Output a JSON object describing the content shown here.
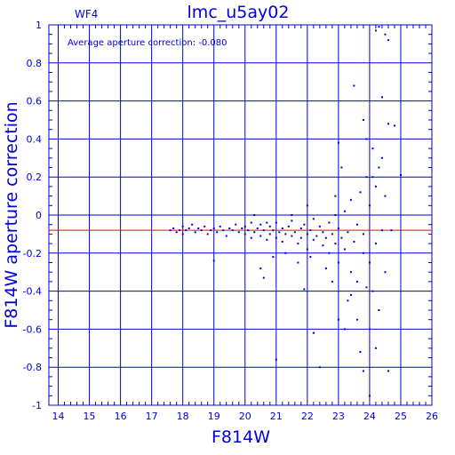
{
  "chart_data": {
    "type": "scatter",
    "title": "lmc_u5ay02",
    "panel_label": "WF4",
    "annotation": "Average aperture correction:  -0.080",
    "xlabel": "F814W",
    "ylabel": "F814W aperture correction",
    "xlim": [
      13.7,
      26.0
    ],
    "ylim": [
      -1.0,
      1.0
    ],
    "xticks": [
      "14",
      "15",
      "16",
      "17",
      "18",
      "19",
      "20",
      "21",
      "22",
      "23",
      "24",
      "25",
      "26"
    ],
    "yticks": [
      "1",
      "0.8",
      "0.6",
      "0.4",
      "0.2",
      "0",
      "-0.2",
      "-0.4",
      "-0.6",
      "-0.8",
      "-1"
    ],
    "grid": true,
    "reference_line": {
      "y": -0.08,
      "color": "#ff0000"
    },
    "colors": {
      "axes": "#0000dd",
      "points": "#0000dd",
      "reference": "#ff0000"
    },
    "series": [
      {
        "points": [
          [
            17.6,
            -0.08
          ],
          [
            17.7,
            -0.07
          ],
          [
            17.8,
            -0.09
          ],
          [
            17.9,
            -0.08
          ],
          [
            18.0,
            -0.06
          ],
          [
            18.0,
            -0.1
          ],
          [
            18.1,
            -0.08
          ],
          [
            18.2,
            -0.07
          ],
          [
            18.3,
            -0.05
          ],
          [
            18.4,
            -0.09
          ],
          [
            18.5,
            -0.07
          ],
          [
            18.6,
            -0.08
          ],
          [
            18.7,
            -0.06
          ],
          [
            18.8,
            -0.1
          ],
          [
            18.9,
            -0.08
          ],
          [
            19.0,
            -0.07
          ],
          [
            19.1,
            -0.09
          ],
          [
            19.2,
            -0.06
          ],
          [
            19.3,
            -0.08
          ],
          [
            19.4,
            -0.11
          ],
          [
            19.5,
            -0.07
          ],
          [
            19.6,
            -0.08
          ],
          [
            19.7,
            -0.05
          ],
          [
            19.8,
            -0.09
          ],
          [
            19.9,
            -0.07
          ],
          [
            20.0,
            -0.1
          ],
          [
            20.0,
            -0.06
          ],
          [
            20.1,
            -0.08
          ],
          [
            20.2,
            -0.12
          ],
          [
            20.2,
            -0.04
          ],
          [
            20.3,
            -0.09
          ],
          [
            20.4,
            -0.07
          ],
          [
            20.5,
            -0.11
          ],
          [
            20.5,
            -0.05
          ],
          [
            20.6,
            -0.08
          ],
          [
            20.7,
            -0.13
          ],
          [
            20.8,
            -0.06
          ],
          [
            20.8,
            -0.1
          ],
          [
            20.9,
            -0.08
          ],
          [
            21.0,
            -0.12
          ],
          [
            21.0,
            -0.04
          ],
          [
            21.1,
            -0.09
          ],
          [
            21.2,
            -0.07
          ],
          [
            21.2,
            -0.14
          ],
          [
            21.3,
            -0.1
          ],
          [
            21.4,
            -0.06
          ],
          [
            21.5,
            -0.11
          ],
          [
            21.5,
            -0.03
          ],
          [
            21.6,
            -0.09
          ],
          [
            21.7,
            -0.15
          ],
          [
            21.8,
            -0.07
          ],
          [
            21.8,
            -0.12
          ],
          [
            21.9,
            -0.05
          ],
          [
            22.0,
            -0.1
          ],
          [
            22.0,
            -0.18
          ],
          [
            22.1,
            -0.08
          ],
          [
            22.2,
            -0.13
          ],
          [
            22.2,
            -0.02
          ],
          [
            22.3,
            -0.11
          ],
          [
            22.4,
            -0.06
          ],
          [
            22.5,
            -0.16
          ],
          [
            22.5,
            -0.09
          ],
          [
            22.6,
            -0.12
          ],
          [
            22.7,
            -0.04
          ],
          [
            22.7,
            -0.2
          ],
          [
            22.8,
            -0.1
          ],
          [
            22.9,
            -0.15
          ],
          [
            23.0,
            -0.07
          ],
          [
            23.0,
            -0.25
          ],
          [
            23.1,
            -0.12
          ],
          [
            23.2,
            0.02
          ],
          [
            23.2,
            -0.18
          ],
          [
            23.3,
            -0.09
          ],
          [
            23.4,
            -0.3
          ],
          [
            23.4,
            0.08
          ],
          [
            23.5,
            -0.14
          ],
          [
            23.6,
            -0.05
          ],
          [
            23.6,
            -0.35
          ],
          [
            23.7,
            0.12
          ],
          [
            23.8,
            -0.2
          ],
          [
            23.8,
            -0.1
          ],
          [
            23.9,
            0.2
          ],
          [
            24.0,
            -0.25
          ],
          [
            24.0,
            0.05
          ],
          [
            24.1,
            -0.4
          ],
          [
            24.2,
            0.15
          ],
          [
            24.2,
            -0.15
          ],
          [
            24.3,
            -0.5
          ],
          [
            24.4,
            0.3
          ],
          [
            24.4,
            -0.08
          ],
          [
            24.5,
            -0.3
          ],
          [
            24.5,
            0.1
          ],
          [
            19.0,
            -0.24
          ],
          [
            20.6,
            -0.33
          ],
          [
            20.5,
            -0.28
          ],
          [
            21.0,
            -0.76
          ],
          [
            21.9,
            -0.39
          ],
          [
            22.2,
            -0.62
          ],
          [
            22.4,
            -0.8
          ],
          [
            22.9,
            0.1
          ],
          [
            23.0,
            0.38
          ],
          [
            23.1,
            0.25
          ],
          [
            23.2,
            -0.6
          ],
          [
            23.3,
            -0.45
          ],
          [
            23.5,
            0.68
          ],
          [
            23.6,
            -0.55
          ],
          [
            23.7,
            -0.72
          ],
          [
            23.8,
            0.5
          ],
          [
            23.9,
            0.4
          ],
          [
            24.0,
            -0.6
          ],
          [
            24.0,
            -0.95
          ],
          [
            24.1,
            0.35
          ],
          [
            24.2,
            -0.7
          ],
          [
            24.3,
            0.25
          ],
          [
            24.4,
            0.62
          ],
          [
            24.5,
            0.95
          ],
          [
            24.6,
            0.92
          ],
          [
            24.6,
            0.48
          ],
          [
            24.8,
            0.47
          ],
          [
            25.0,
            0.21
          ],
          [
            24.7,
            -0.08
          ],
          [
            24.2,
            0.97
          ],
          [
            24.3,
            0.99
          ],
          [
            24.1,
            0.2
          ],
          [
            23.9,
            -0.38
          ],
          [
            23.4,
            -0.42
          ],
          [
            23.0,
            -0.55
          ],
          [
            22.8,
            -0.35
          ],
          [
            22.6,
            -0.28
          ],
          [
            22.1,
            -0.22
          ],
          [
            21.7,
            -0.25
          ],
          [
            21.3,
            -0.2
          ],
          [
            20.9,
            -0.22
          ],
          [
            20.7,
            -0.04
          ],
          [
            20.3,
            0.0
          ],
          [
            21.5,
            0.0
          ],
          [
            22.0,
            0.05
          ],
          [
            22.9,
            0.0
          ],
          [
            23.8,
            -0.82
          ],
          [
            24.6,
            -0.82
          ]
        ]
      }
    ]
  }
}
